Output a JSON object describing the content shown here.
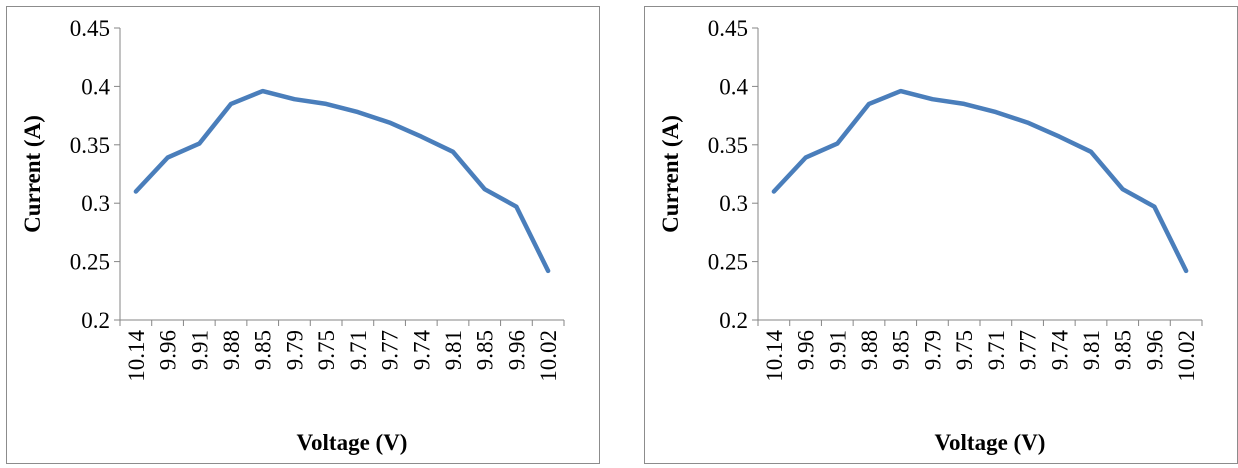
{
  "chart_data": [
    {
      "type": "line",
      "title": "",
      "xlabel": "Voltage (V)",
      "ylabel": "Current (A)",
      "categories": [
        "10.14",
        "9.96",
        "9.91",
        "9.88",
        "9.85",
        "9.79",
        "9.75",
        "9.71",
        "9.77",
        "9.74",
        "9.81",
        "9.85",
        "9.96",
        "10.02"
      ],
      "series": [
        {
          "values": [
            0.31,
            0.339,
            0.351,
            0.385,
            0.396,
            0.389,
            0.385,
            0.378,
            0.369,
            0.357,
            0.344,
            0.312,
            0.297,
            0.242
          ]
        }
      ],
      "ylim": [
        0.2,
        0.45
      ],
      "yticks": [
        "0.45",
        "0.4",
        "0.35",
        "0.3",
        "0.25",
        "0.2"
      ],
      "line_color": "#4a7ebb",
      "grid": false,
      "legend": "none"
    },
    {
      "type": "line",
      "title": "",
      "xlabel": "Voltage (V)",
      "ylabel": "Current (A)",
      "categories": [
        "10.14",
        "9.96",
        "9.91",
        "9.88",
        "9.85",
        "9.79",
        "9.75",
        "9.71",
        "9.77",
        "9.74",
        "9.81",
        "9.85",
        "9.96",
        "10.02"
      ],
      "series": [
        {
          "values": [
            0.31,
            0.339,
            0.351,
            0.385,
            0.396,
            0.389,
            0.385,
            0.378,
            0.369,
            0.357,
            0.344,
            0.312,
            0.297,
            0.242
          ]
        }
      ],
      "ylim": [
        0.2,
        0.45
      ],
      "yticks": [
        "0.45",
        "0.4",
        "0.35",
        "0.3",
        "0.25",
        "0.2"
      ],
      "line_color": "#4a7ebb",
      "grid": false,
      "legend": "none"
    }
  ]
}
